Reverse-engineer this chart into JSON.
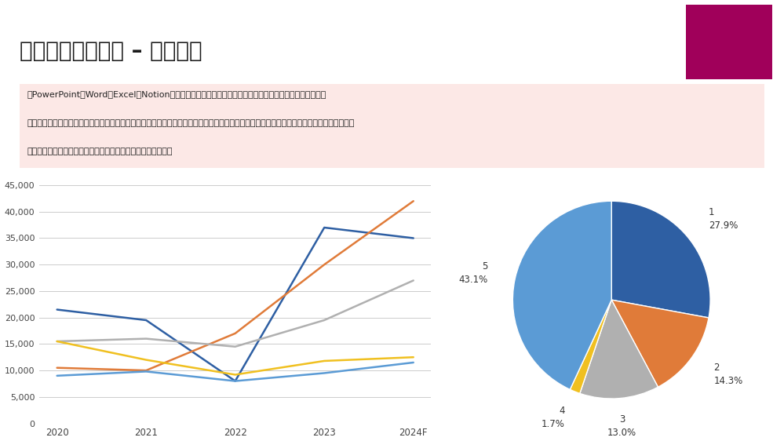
{
  "title": "市場調査レポート – イメージ",
  "title_color": "#1a1a1a",
  "title_fontsize": 20,
  "accent_rect_color": "#a0005a",
  "info_box_bg": "#fce8e6",
  "info_box_lines": [
    "・PowerPointやWord、Excel、Notionなど、ご要望のフォーマットに合わせたレポート作成が可能です。",
    "・調査項目は市場規模や推移、主要プレイヤー、シェア、ユーザー評価など。対象によって異なりますので、まずはお問い合わせください！",
    "・日本語以外に、英語でのレポート作成にも対応いたします。"
  ],
  "line_years": [
    "2020",
    "2021",
    "2022",
    "2023",
    "2024F"
  ],
  "line_series": [
    {
      "color": "#2e5fa3",
      "values": [
        21500,
        19500,
        8000,
        37000,
        35000
      ]
    },
    {
      "color": "#e07b39",
      "values": [
        10500,
        10000,
        17000,
        30000,
        42000
      ]
    },
    {
      "color": "#b0b0b0",
      "values": [
        15500,
        16000,
        14500,
        19500,
        27000
      ]
    },
    {
      "color": "#f0c020",
      "values": [
        15500,
        12000,
        9200,
        11800,
        12500
      ]
    },
    {
      "color": "#5b9bd5",
      "values": [
        9000,
        9800,
        8000,
        9500,
        11500
      ]
    }
  ],
  "line_ylim": [
    0,
    45000
  ],
  "line_yticks": [
    0,
    5000,
    10000,
    15000,
    20000,
    25000,
    30000,
    35000,
    40000,
    45000
  ],
  "pie_labels": [
    "1",
    "2",
    "3",
    "4",
    "5"
  ],
  "pie_values": [
    27.9,
    14.3,
    13.0,
    1.7,
    43.1
  ],
  "pie_pct_labels": [
    "27.9%",
    "14.3%",
    "13.0%",
    "1.7%",
    "43.1%"
  ],
  "pie_colors": [
    "#2e5fa3",
    "#e07b39",
    "#b0b0b0",
    "#f0c020",
    "#5b9bd5"
  ],
  "bg_color": "#ffffff"
}
